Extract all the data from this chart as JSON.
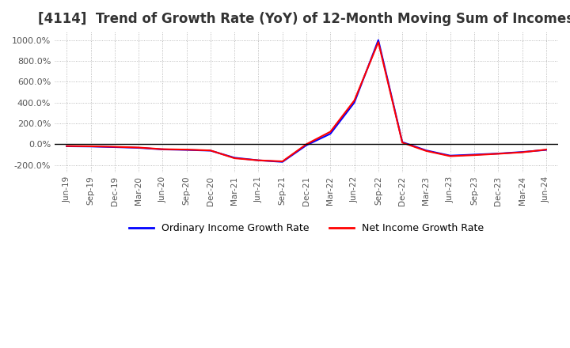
{
  "title": "[4114]  Trend of Growth Rate (YoY) of 12-Month Moving Sum of Incomes",
  "title_fontsize": 12,
  "ylim": [
    -270,
    1080
  ],
  "yticks": [
    -200,
    0,
    200,
    400,
    600,
    800,
    1000
  ],
  "ytick_labels": [
    "-200.0%",
    "0.0%",
    "200.0%",
    "400.0%",
    "600.0%",
    "800.0%",
    "1000.0%"
  ],
  "background_color": "#ffffff",
  "plot_bg_color": "#ffffff",
  "grid_color": "#aaaaaa",
  "legend_labels": [
    "Ordinary Income Growth Rate",
    "Net Income Growth Rate"
  ],
  "legend_colors": [
    "#0000ff",
    "#ff0000"
  ],
  "dates": [
    "Jun-19",
    "Sep-19",
    "Dec-19",
    "Mar-20",
    "Jun-20",
    "Sep-20",
    "Dec-20",
    "Mar-21",
    "Jun-21",
    "Sep-21",
    "Dec-21",
    "Mar-22",
    "Jun-22",
    "Sep-22",
    "Dec-22",
    "Mar-23",
    "Jun-23",
    "Sep-23",
    "Dec-23",
    "Mar-24",
    "Jun-24"
  ],
  "ordinary_income_gr": [
    -20,
    -22,
    -28,
    -35,
    -50,
    -55,
    -62,
    -130,
    -155,
    -170,
    -10,
    100,
    400,
    1000,
    20,
    -60,
    -110,
    -100,
    -90,
    -75,
    -55
  ],
  "net_income_gr": [
    -18,
    -20,
    -25,
    -32,
    -48,
    -52,
    -60,
    -135,
    -155,
    -165,
    0,
    120,
    420,
    980,
    15,
    -65,
    -115,
    -105,
    -92,
    -78,
    -52
  ]
}
